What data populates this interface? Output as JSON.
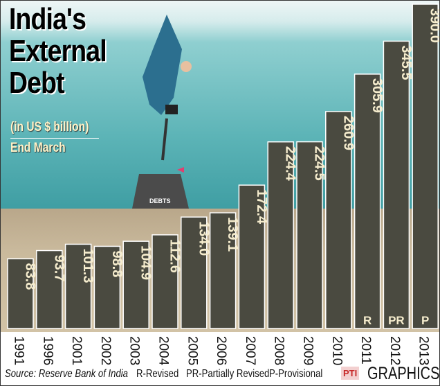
{
  "title_lines": [
    "India's",
    "External",
    "Debt"
  ],
  "subtitle": "(in US $ billion)",
  "period": "End March",
  "chart_data": {
    "type": "bar",
    "title": "India's External Debt",
    "ylabel": "(in US $ billion)",
    "categories": [
      "1991",
      "1996",
      "2001",
      "2002",
      "2003",
      "2004",
      "2005",
      "2006",
      "2007",
      "2008",
      "2009",
      "2010",
      "2011",
      "2012",
      "2013"
    ],
    "values": [
      83.8,
      93.7,
      101.3,
      98.8,
      104.9,
      112.6,
      134.0,
      139.1,
      172.4,
      224.4,
      224.5,
      260.9,
      305.9,
      345.5,
      390.0
    ],
    "value_labels": [
      "83.8",
      "93.7",
      "101.3",
      "98.8",
      "104.9",
      "112.6",
      "134.0",
      "139.1",
      "172.4",
      "224.4",
      "224.5",
      "260.9",
      "305.9",
      "345.5",
      "390.0"
    ],
    "annotations": [
      "",
      "",
      "",
      "",
      "",
      "",
      "",
      "",
      "",
      "",
      "",
      "",
      "R",
      "PR",
      "P"
    ],
    "ylim": [
      0,
      390
    ],
    "grid": false,
    "bar_color": "#4a4a40",
    "label_color": "#f5eccd"
  },
  "footer": {
    "source": "Source: Reserve Bank of India",
    "legend_r": "R-Revised",
    "legend_pr": "PR-Partially Revised",
    "legend_p": "P-Provisional",
    "logo": "PTI",
    "graphics": "GRAPHICS"
  },
  "illustration_text": "DEBTS"
}
